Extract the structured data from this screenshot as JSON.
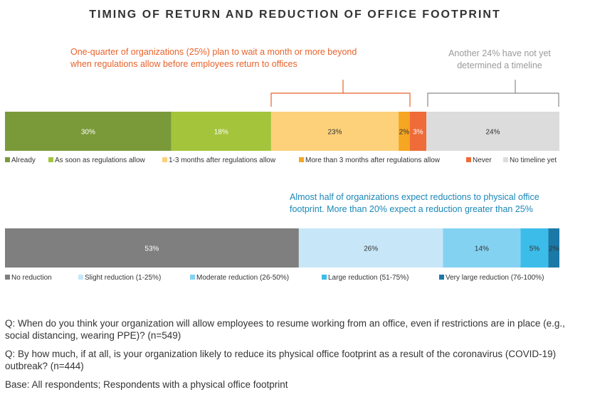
{
  "title": "TIMING OF RETURN AND REDUCTION OF OFFICE FOOTPRINT",
  "annotations": {
    "wait_callout": "One-quarter of organizations (25%) plan to wait a month or more beyond when regulations allow before employees return to offices",
    "timeline_callout": "Another 24% have not yet determined a timeline",
    "reduction_callout": "Almost half of organizations expect reductions to physical office footprint. More than 20% expect a reduction greater than 25%"
  },
  "chart_data": [
    {
      "type": "bar",
      "orientation": "horizontal-stacked",
      "unit": "%",
      "legend_position": "bottom",
      "series": [
        {
          "name": "Already",
          "value": 30,
          "label": "30%",
          "color": "#7a9a3a"
        },
        {
          "name": "As soon as regulations allow",
          "value": 18,
          "label": "18%",
          "color": "#a4c43c"
        },
        {
          "name": "1-3 months after regulations allow",
          "value": 23,
          "label": "23%",
          "color": "#fdd17a"
        },
        {
          "name": "More than 3 months after regulations allow",
          "value": 2,
          "label": "2%",
          "color": "#f6a623"
        },
        {
          "name": "Never",
          "value": 3,
          "label": "3%",
          "color": "#ef6b39"
        },
        {
          "name": "No timeline yet",
          "value": 24,
          "label": "24%",
          "color": "#dcdcdc"
        }
      ]
    },
    {
      "type": "bar",
      "orientation": "horizontal-stacked",
      "unit": "%",
      "legend_position": "bottom",
      "series": [
        {
          "name": "No reduction",
          "value": 53,
          "label": "53%",
          "color": "#7f7f7f"
        },
        {
          "name": "Slight reduction (1-25%)",
          "value": 26,
          "label": "26%",
          "color": "#c7e7f8"
        },
        {
          "name": "Moderate reduction (26-50%)",
          "value": 14,
          "label": "14%",
          "color": "#84d2f2"
        },
        {
          "name": "Large reduction (51-75%)",
          "value": 5,
          "label": "5%",
          "color": "#3cbde9"
        },
        {
          "name": "Very large reduction (76-100%)",
          "value": 2,
          "label": "2%",
          "color": "#1b79a8"
        }
      ]
    }
  ],
  "notes": {
    "q1": "Q: When do you think your organization will allow employees to resume working from an office, even if restrictions are in place (e.g., social distancing, wearing PPE)? (n=549)",
    "q2": "Q: By how much, if at all, is your organization likely to reduce its physical office footprint as a result of the coronavirus (COVID-19) outbreak? (n=444)",
    "base": "Base: All respondents; Respondents with a physical office footprint"
  }
}
